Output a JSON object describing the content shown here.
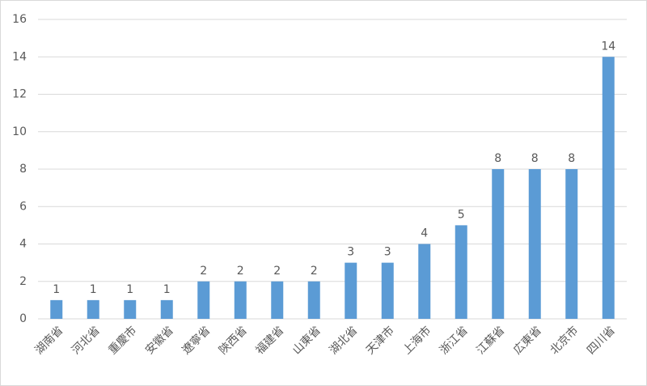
{
  "chart_data": {
    "type": "bar",
    "categories": [
      "湖南省",
      "河北省",
      "重慶市",
      "安徽省",
      "遼寧省",
      "陝西省",
      "福建省",
      "山東省",
      "湖北省",
      "天津市",
      "上海市",
      "浙江省",
      "江蘇省",
      "広東省",
      "北京市",
      "四川省"
    ],
    "values": [
      1,
      1,
      1,
      1,
      2,
      2,
      2,
      2,
      3,
      3,
      4,
      5,
      8,
      8,
      8,
      14
    ],
    "color": "#5b9bd5",
    "ylim": [
      0,
      16
    ],
    "yticks": [
      0,
      2,
      4,
      6,
      8,
      10,
      12,
      14,
      16
    ],
    "grid": true
  }
}
